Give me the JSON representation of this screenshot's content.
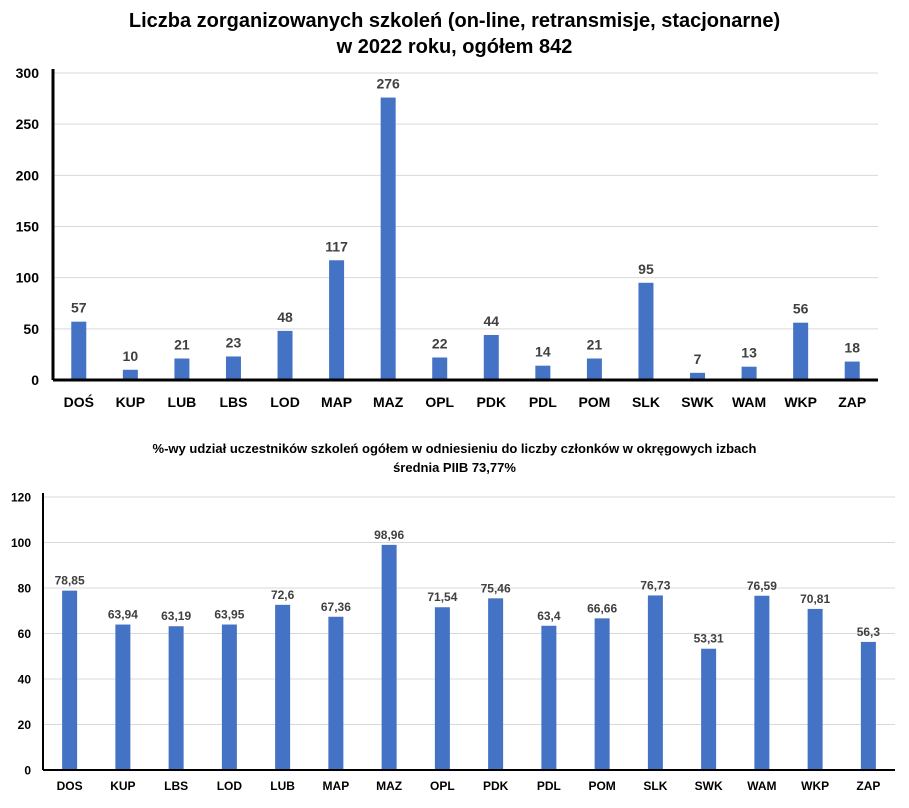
{
  "chart_data": [
    {
      "type": "bar",
      "title": "Liczba zorganizowanych szkoleń (on-line, retransmisje, stacjonarne)",
      "subtitle": "w 2022 roku, ogółem 842",
      "categories": [
        "DOŚ",
        "KUP",
        "LUB",
        "LBS",
        "LOD",
        "MAP",
        "MAZ",
        "OPL",
        "PDK",
        "PDL",
        "POM",
        "SLK",
        "SWK",
        "WAM",
        "WKP",
        "ZAP"
      ],
      "values": [
        57,
        10,
        21,
        23,
        48,
        117,
        276,
        22,
        44,
        14,
        21,
        95,
        7,
        13,
        56,
        18
      ],
      "data_labels": [
        "57",
        "10",
        "21",
        "23",
        "48",
        "117",
        "276",
        "22",
        "44",
        "14",
        "21",
        "95",
        "7",
        "13",
        "56",
        "18"
      ],
      "ylim": [
        0,
        300
      ],
      "yticks": [
        "0",
        "50",
        "100",
        "150",
        "200",
        "250",
        "300"
      ],
      "grid": true,
      "legend": "none",
      "bar_color": "#4472C4"
    },
    {
      "type": "bar",
      "title": "%-wy udział uczestników szkoleń ogółem w odniesieniu do liczby członków w okręgowych izbach",
      "subtitle": "średnia PIIB 73,77%",
      "categories": [
        "DOS",
        "KUP",
        "LBS",
        "LOD",
        "LUB",
        "MAP",
        "MAZ",
        "OPL",
        "PDK",
        "PDL",
        "POM",
        "SLK",
        "SWK",
        "WAM",
        "WKP",
        "ZAP"
      ],
      "values": [
        78.85,
        63.94,
        63.19,
        63.95,
        72.6,
        67.36,
        98.96,
        71.54,
        75.46,
        63.4,
        66.66,
        76.73,
        53.31,
        76.59,
        70.81,
        56.3
      ],
      "data_labels": [
        "78,85",
        "63,94",
        "63,19",
        "63,95",
        "72,6",
        "67,36",
        "98,96",
        "71,54",
        "75,46",
        "63,4",
        "66,66",
        "76,73",
        "53,31",
        "76,59",
        "70,81",
        "56,3"
      ],
      "ylim": [
        0,
        120
      ],
      "yticks": [
        "0",
        "20",
        "40",
        "60",
        "80",
        "100",
        "120"
      ],
      "grid": true,
      "legend": "none",
      "bar_color": "#4472C4"
    }
  ]
}
